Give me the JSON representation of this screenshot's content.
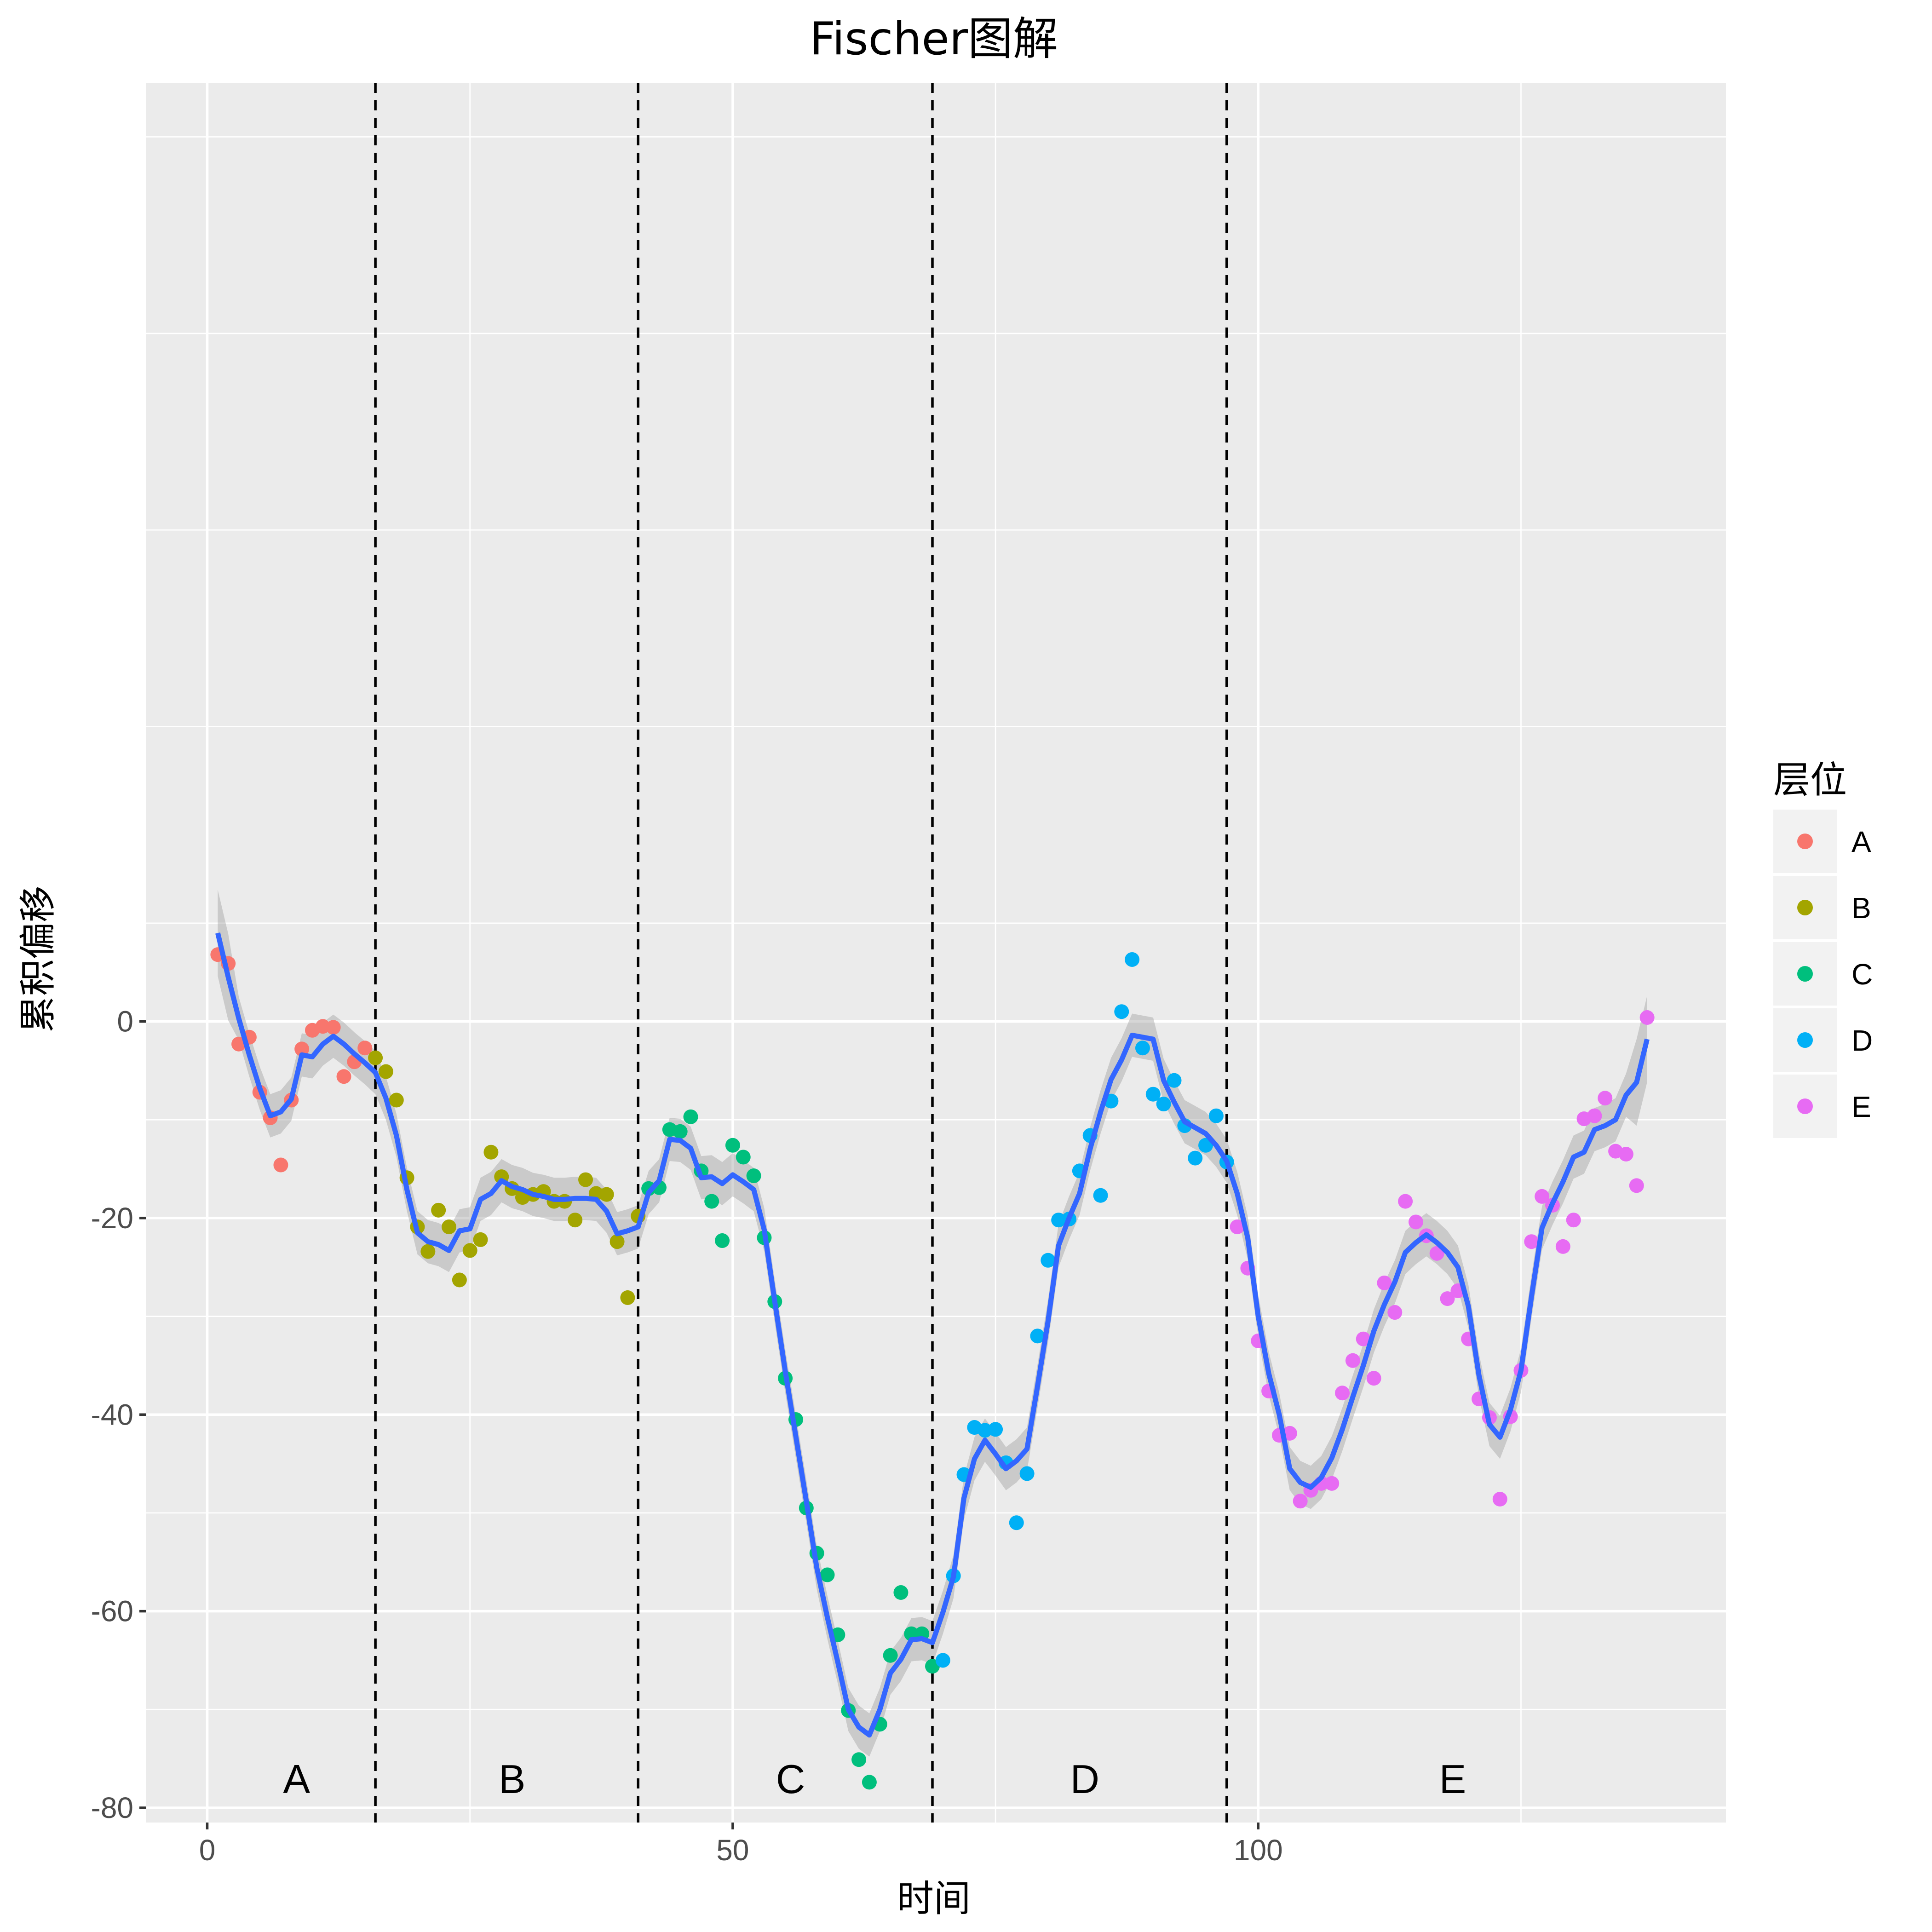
{
  "chart_data": {
    "type": "scatter",
    "title": "Fischer图解",
    "xlabel": "时间",
    "ylabel": "累积偏移",
    "xlim": [
      -5.8,
      144.5
    ],
    "ylim": [
      -81.5,
      95.5
    ],
    "x_ticks": [
      0,
      50,
      100
    ],
    "x_tick_labels": [
      "0",
      "50",
      "100"
    ],
    "y_ticks": [
      -80,
      -60,
      -40,
      -20,
      0
    ],
    "y_tick_labels": [
      "-80",
      "-60",
      "-40",
      "-20",
      "0"
    ],
    "grid": true,
    "legend": {
      "title": "层位",
      "position": "right",
      "entries": [
        {
          "label": "A",
          "color": "#F8766D"
        },
        {
          "label": "B",
          "color": "#A3A500"
        },
        {
          "label": "C",
          "color": "#00BF7D"
        },
        {
          "label": "D",
          "color": "#00B0F6"
        },
        {
          "label": "E",
          "color": "#E76BF3"
        }
      ]
    },
    "boundaries": [
      16,
      41,
      69,
      97
    ],
    "stratum_labels": [
      {
        "text": "A",
        "x": 8.5,
        "y": -78.5
      },
      {
        "text": "B",
        "x": 29,
        "y": -78.5
      },
      {
        "text": "C",
        "x": 55.5,
        "y": -78.5
      },
      {
        "text": "D",
        "x": 83.5,
        "y": -78.5
      },
      {
        "text": "E",
        "x": 118.5,
        "y": -78.5
      }
    ],
    "series": [
      {
        "name": "A",
        "x": [
          1,
          2,
          3,
          4,
          5,
          6,
          7,
          8,
          9,
          10,
          11,
          12,
          13,
          14,
          15
        ],
        "y": [
          6.8,
          5.9,
          -2.3,
          -1.6,
          -7.2,
          -9.8,
          -14.6,
          -8.0,
          -2.8,
          -0.9,
          -0.5,
          -0.6,
          -5.6,
          -4.1,
          -2.7
        ]
      },
      {
        "name": "B",
        "x": [
          16,
          17,
          18,
          19,
          20,
          21,
          22,
          23,
          24,
          25,
          26,
          27,
          28,
          29,
          30,
          31,
          32,
          33,
          34,
          35,
          36,
          37,
          38,
          39,
          40,
          41
        ],
        "y": [
          -3.7,
          -5.1,
          -8.0,
          -15.9,
          -20.9,
          -23.4,
          -19.2,
          -20.9,
          -26.3,
          -23.3,
          -22.2,
          -13.3,
          -15.8,
          -17.0,
          -17.9,
          -17.6,
          -17.3,
          -18.3,
          -18.3,
          -20.2,
          -16.1,
          -17.5,
          -17.6,
          -22.4,
          -28.1,
          -19.8
        ]
      },
      {
        "name": "C",
        "x": [
          42,
          43,
          44,
          45,
          46,
          47,
          48,
          49,
          50,
          51,
          52,
          53,
          54,
          55,
          56,
          57,
          58,
          59,
          60,
          61,
          62,
          63,
          64,
          65,
          66,
          67,
          68,
          69
        ],
        "y": [
          -17.0,
          -16.9,
          -11.0,
          -11.2,
          -9.7,
          -15.2,
          -18.3,
          -22.3,
          -12.6,
          -13.8,
          -15.7,
          -22.0,
          -28.5,
          -36.3,
          -40.5,
          -49.5,
          -54.1,
          -56.3,
          -62.4,
          -70.1,
          -75.1,
          -77.4,
          -71.5,
          -64.5,
          -58.1,
          -62.3,
          -62.3,
          -65.6
        ]
      },
      {
        "name": "D",
        "x": [
          70,
          71,
          72,
          73,
          74,
          75,
          76,
          77,
          78,
          79,
          80,
          81,
          82,
          83,
          84,
          85,
          86,
          87,
          88,
          89,
          90,
          91,
          92,
          93,
          94,
          95,
          96,
          97
        ],
        "y": [
          -65.0,
          -56.4,
          -46.1,
          -41.3,
          -41.6,
          -41.5,
          -44.9,
          -51.0,
          -46.0,
          -32.0,
          -24.3,
          -20.2,
          -20.1,
          -15.2,
          -11.6,
          -17.7,
          -8.1,
          1.0,
          6.3,
          -2.7,
          -7.4,
          -8.4,
          -6.0,
          -10.6,
          -13.9,
          -12.6,
          -9.6,
          -14.3
        ]
      },
      {
        "name": "E",
        "x": [
          98,
          99,
          100,
          101,
          102,
          103,
          104,
          105,
          106,
          107,
          108,
          109,
          110,
          111,
          112,
          113,
          114,
          115,
          116,
          117,
          118,
          119,
          120,
          121,
          122,
          123,
          124,
          125,
          126,
          127,
          128,
          129,
          130,
          131,
          132,
          133,
          134,
          135,
          136,
          137
        ],
        "y": [
          -20.9,
          -25.1,
          -32.5,
          -37.6,
          -42.1,
          -41.9,
          -48.8,
          -47.7,
          -47.0,
          -47.0,
          -37.8,
          -34.5,
          -32.3,
          -36.3,
          -26.6,
          -29.6,
          -18.3,
          -20.4,
          -21.8,
          -23.6,
          -28.2,
          -27.4,
          -32.3,
          -38.4,
          -40.3,
          -48.6,
          -40.2,
          -35.5,
          -22.4,
          -17.8,
          -18.7,
          -22.9,
          -20.2,
          -9.9,
          -9.6,
          -7.8,
          -13.2,
          -13.5,
          -16.7,
          0.4
        ]
      }
    ],
    "smooth_line": {
      "color": "#3366FF",
      "x": [
        1,
        2,
        3,
        4,
        5,
        6,
        7,
        8,
        9,
        10,
        11,
        12,
        13,
        14,
        15,
        16,
        17,
        18,
        19,
        20,
        21,
        22,
        23,
        24,
        25,
        26,
        27,
        28,
        29,
        30,
        31,
        32,
        33,
        34,
        35,
        36,
        37,
        38,
        39,
        40,
        41,
        42,
        43,
        44,
        45,
        46,
        47,
        48,
        49,
        50,
        51,
        52,
        53,
        54,
        55,
        56,
        57,
        58,
        59,
        60,
        61,
        62,
        63,
        64,
        65,
        66,
        67,
        68,
        69,
        70,
        71,
        72,
        73,
        74,
        75,
        76,
        77,
        78,
        79,
        80,
        81,
        82,
        83,
        84,
        85,
        86,
        87,
        88,
        89,
        90,
        91,
        92,
        93,
        94,
        95,
        96,
        97,
        98,
        99,
        100,
        101,
        102,
        103,
        104,
        105,
        106,
        107,
        108,
        109,
        110,
        111,
        112,
        113,
        114,
        115,
        116,
        117,
        118,
        119,
        120,
        121,
        122,
        123,
        124,
        125,
        126,
        127,
        128,
        129,
        130,
        131,
        132,
        133,
        134,
        135,
        136,
        137
      ],
      "y": [
        9,
        4.5,
        0.3,
        -3.4,
        -6.8,
        -9.6,
        -9.2,
        -7.9,
        -3.4,
        -3.6,
        -2.3,
        -1.5,
        -2.3,
        -3.3,
        -4.2,
        -5.2,
        -7.8,
        -11.6,
        -17.1,
        -21.5,
        -22.4,
        -22.7,
        -23.3,
        -21.3,
        -21.1,
        -18.1,
        -17.5,
        -16.2,
        -16.8,
        -17.1,
        -17.6,
        -17.8,
        -18.1,
        -18.1,
        -18.0,
        -18.0,
        -18.1,
        -19.3,
        -21.6,
        -21.3,
        -20.9,
        -17.4,
        -16.2,
        -12.0,
        -12.1,
        -12.9,
        -15.9,
        -15.8,
        -16.5,
        -15.6,
        -16.3,
        -17.1,
        -21.2,
        -28.5,
        -35.6,
        -42.2,
        -48.8,
        -55.6,
        -60.6,
        -65.2,
        -70.0,
        -71.8,
        -72.6,
        -70.0,
        -66.3,
        -64.9,
        -62.9,
        -62.8,
        -63.2,
        -60.1,
        -56.5,
        -48.5,
        -44.5,
        -42.6,
        -44.0,
        -45.5,
        -44.7,
        -43.5,
        -37.1,
        -30.5,
        -22.8,
        -20.0,
        -17.5,
        -13.0,
        -9.2,
        -5.9,
        -3.9,
        -1.4,
        -1.6,
        -1.8,
        -6.0,
        -8.2,
        -10.2,
        -10.8,
        -11.4,
        -12.6,
        -14.2,
        -17.5,
        -22.0,
        -30.0,
        -35.8,
        -40.0,
        -45.5,
        -46.9,
        -47.4,
        -46.4,
        -44.4,
        -41.5,
        -38.2,
        -35.0,
        -31.5,
        -28.8,
        -26.5,
        -23.5,
        -22.5,
        -21.7,
        -22.5,
        -23.5,
        -25.0,
        -29.0,
        -36.0,
        -41.0,
        -42.3,
        -39.5,
        -35.5,
        -28.0,
        -21.0,
        -18.5,
        -16.3,
        -13.8,
        -13.3,
        -11.0,
        -10.6,
        -10.0,
        -7.5,
        -6.2,
        -1.8
      ]
    },
    "band_color": "#999999"
  }
}
